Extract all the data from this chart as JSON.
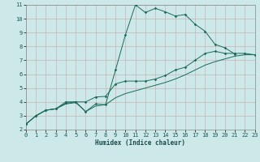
{
  "xlabel": "Humidex (Indice chaleur)",
  "xlim": [
    0,
    23
  ],
  "ylim": [
    2,
    11
  ],
  "xticks": [
    0,
    1,
    2,
    3,
    4,
    5,
    6,
    7,
    8,
    9,
    10,
    11,
    12,
    13,
    14,
    15,
    16,
    17,
    18,
    19,
    20,
    21,
    22,
    23
  ],
  "yticks": [
    2,
    3,
    4,
    5,
    6,
    7,
    8,
    9,
    10,
    11
  ],
  "bg_color": "#cce8e8",
  "grid_color": "#b8d8d8",
  "line_color": "#1a6b5a",
  "line1_x": [
    0,
    1,
    2,
    3,
    4,
    5,
    6,
    7,
    8,
    9,
    10,
    11,
    12,
    13,
    14,
    15,
    16,
    17,
    18,
    19,
    20,
    21
  ],
  "line1_y": [
    2.4,
    3.0,
    3.4,
    3.5,
    3.9,
    4.0,
    3.3,
    3.85,
    3.8,
    6.3,
    8.85,
    11.0,
    10.45,
    10.75,
    10.5,
    10.2,
    10.3,
    9.6,
    9.1,
    8.15,
    7.9,
    7.45
  ],
  "line2_x": [
    0,
    1,
    2,
    3,
    4,
    5,
    6,
    7,
    8,
    9,
    10,
    11,
    12,
    13,
    14,
    15,
    16,
    17,
    18,
    19,
    20,
    21,
    22,
    23
  ],
  "line2_y": [
    2.4,
    3.0,
    3.4,
    3.5,
    4.0,
    4.0,
    4.0,
    4.35,
    4.4,
    5.3,
    5.5,
    5.5,
    5.5,
    5.65,
    5.9,
    6.3,
    6.5,
    7.0,
    7.5,
    7.65,
    7.5,
    7.5,
    7.5,
    7.4
  ],
  "line3_x": [
    0,
    1,
    2,
    3,
    4,
    5,
    6,
    7,
    8,
    9,
    10,
    11,
    12,
    13,
    14,
    15,
    16,
    17,
    18,
    19,
    20,
    21,
    22,
    23
  ],
  "line3_y": [
    2.4,
    3.0,
    3.4,
    3.5,
    3.85,
    3.95,
    3.3,
    3.7,
    3.8,
    4.3,
    4.6,
    4.8,
    5.0,
    5.2,
    5.4,
    5.65,
    5.95,
    6.3,
    6.65,
    6.9,
    7.1,
    7.3,
    7.4,
    7.4
  ]
}
